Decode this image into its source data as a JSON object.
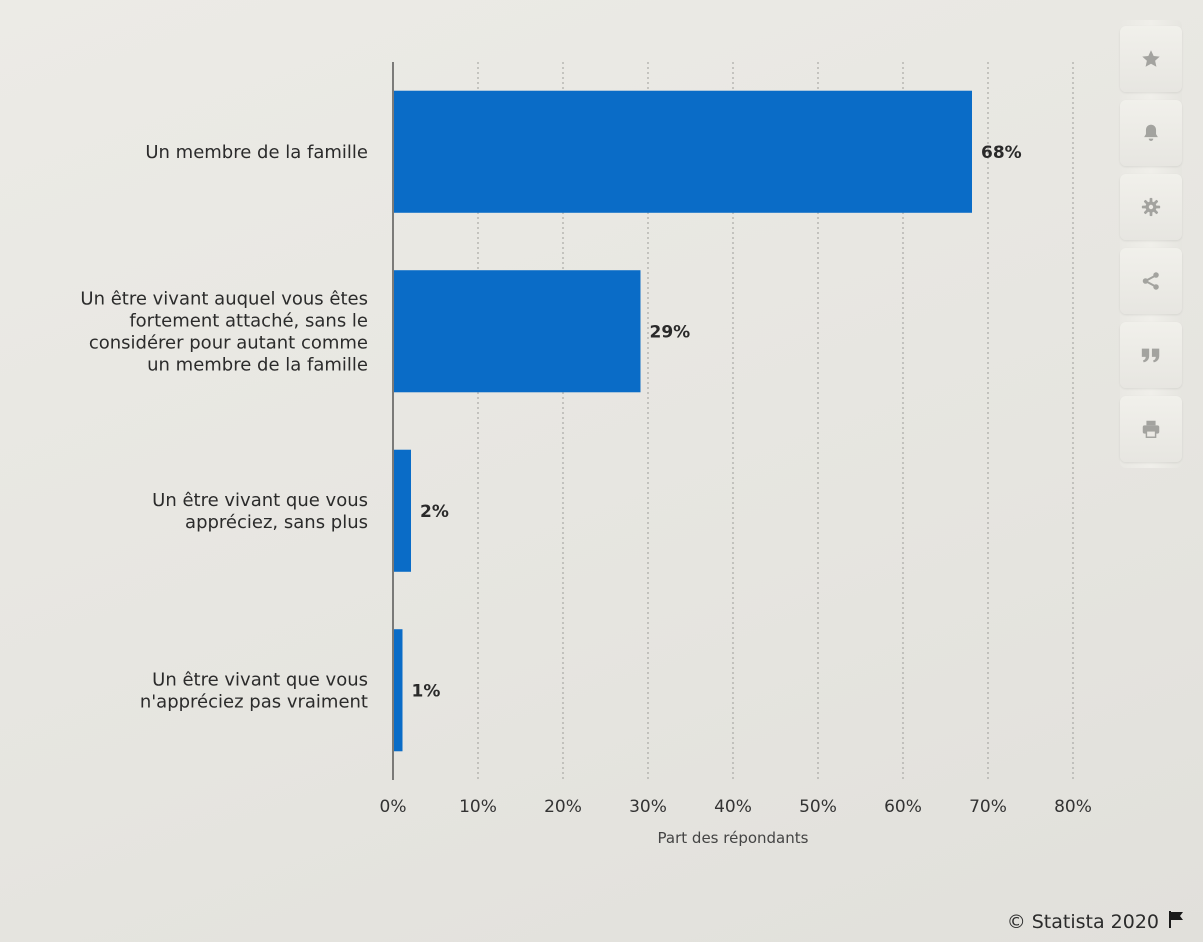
{
  "chart_data": {
    "type": "bar",
    "orientation": "horizontal",
    "categories": [
      [
        "Un membre de la famille"
      ],
      [
        "Un être vivant auquel vous êtes",
        "fortement attaché, sans le",
        "considérer pour autant comme",
        "un membre de la famille"
      ],
      [
        "Un être vivant que vous",
        "appréciez, sans plus"
      ],
      [
        "Un être vivant que vous",
        "n'appréciez pas vraiment"
      ]
    ],
    "values": [
      68,
      29,
      2,
      1
    ],
    "value_labels": [
      "68%",
      "29%",
      "2%",
      "1%"
    ],
    "xlabel": "Part des répondants",
    "xlim": [
      0,
      80
    ],
    "x_ticks": [
      0,
      10,
      20,
      30,
      40,
      50,
      60,
      70,
      80
    ],
    "x_tick_labels": [
      "0%",
      "10%",
      "20%",
      "30%",
      "40%",
      "50%",
      "60%",
      "70%",
      "80%"
    ],
    "grid": true,
    "bar_color": "#0a6cc7"
  },
  "toolbar": {
    "buttons": [
      {
        "name": "favorite",
        "icon": "star-icon"
      },
      {
        "name": "notification",
        "icon": "bell-icon"
      },
      {
        "name": "settings",
        "icon": "gear-icon"
      },
      {
        "name": "share",
        "icon": "share-icon"
      },
      {
        "name": "cite",
        "icon": "quote-icon"
      },
      {
        "name": "print",
        "icon": "print-icon"
      }
    ],
    "icon_color": "#a3a39f"
  },
  "footer": {
    "copyright": "© Statista 2020",
    "flag_icon": "flag-icon"
  }
}
